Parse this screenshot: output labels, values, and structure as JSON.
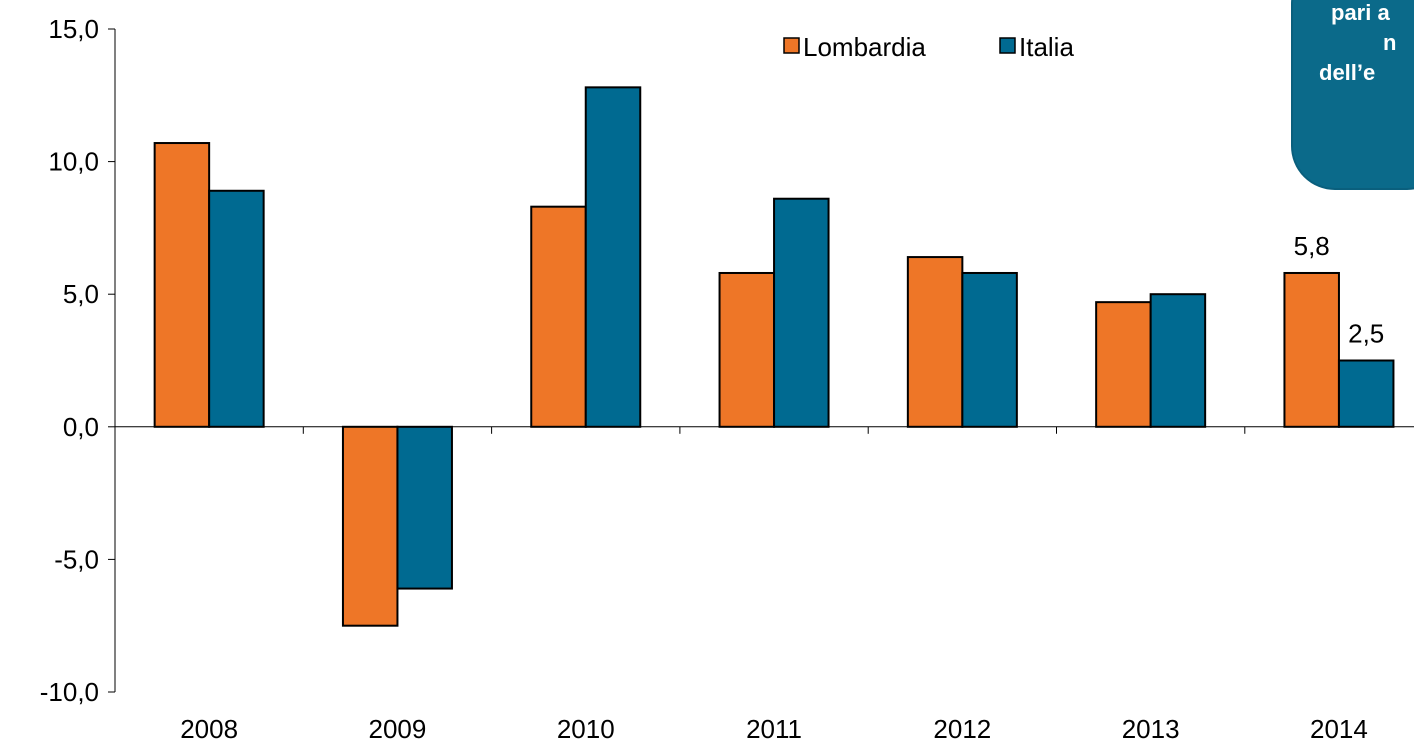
{
  "chart_data": {
    "type": "bar",
    "categories": [
      "2008",
      "2009",
      "2010",
      "2011",
      "2012",
      "2013",
      "2014"
    ],
    "series": [
      {
        "name": "Lombardia",
        "color": "#ee7627",
        "values": [
          10.7,
          -7.5,
          8.3,
          5.8,
          6.4,
          4.7,
          5.8
        ]
      },
      {
        "name": "Italia",
        "color": "#006a91",
        "values": [
          8.9,
          -6.1,
          12.8,
          8.6,
          5.8,
          5.0,
          2.5
        ]
      }
    ],
    "y_ticks": [
      "15,0",
      "10,0",
      "5,0",
      "0,0",
      "-5,0",
      "-10,0"
    ],
    "ylim": [
      -10,
      15
    ],
    "data_labels": [
      {
        "series": 0,
        "index": 6,
        "text": "5,8"
      },
      {
        "series": 1,
        "index": 6,
        "text": "2,5"
      }
    ],
    "legend_position": "top-center",
    "grid": false
  },
  "callout": {
    "lines": [
      "pari a",
      "n",
      "dell’e"
    ],
    "color": "#0b6a8a"
  }
}
